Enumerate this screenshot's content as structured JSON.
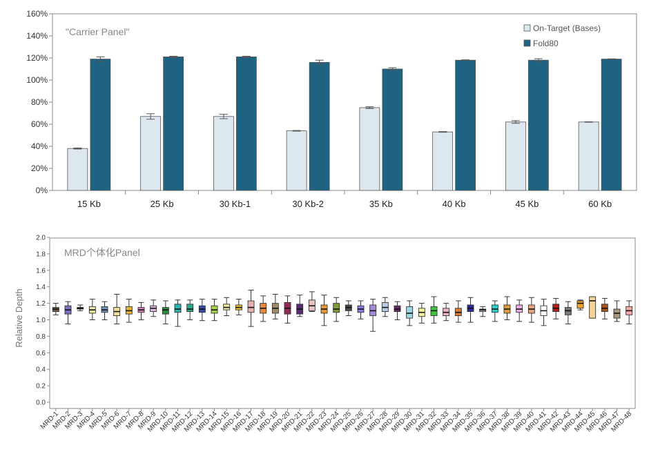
{
  "chart_data": [
    {
      "type": "bar",
      "title": "\"Carrier Panel\"",
      "categories": [
        "15 Kb",
        "25 Kb",
        "30 Kb-1",
        "30 Kb-2",
        "35 Kb",
        "40 Kb",
        "45 Kb",
        "60 Kb"
      ],
      "ylim": [
        0,
        160
      ],
      "yticks": [
        "0%",
        "20%",
        "40%",
        "60%",
        "80%",
        "100%",
        "120%",
        "140%",
        "160%"
      ],
      "legend_position": "top-right",
      "series": [
        {
          "name": "On-Target (Bases)",
          "color": "#dce8ee",
          "values": [
            38,
            67,
            67,
            54,
            75,
            53,
            62,
            62
          ],
          "errors": [
            0.5,
            2.5,
            2.0,
            0.3,
            0.8,
            0.3,
            1.2,
            0.2
          ]
        },
        {
          "name": "Fold80",
          "color": "#1e6482",
          "values": [
            119,
            121,
            121,
            116,
            110,
            118,
            118,
            119
          ],
          "errors": [
            2.0,
            0.6,
            0.6,
            2.0,
            1.2,
            0.3,
            1.3,
            0.2
          ]
        }
      ]
    },
    {
      "type": "box",
      "title": "MRD个体化Panel",
      "ylabel": "Relative Depth",
      "ylim": [
        0,
        2.0
      ],
      "yticks": [
        "0.0",
        "0.2",
        "0.4",
        "0.6",
        "0.8",
        "1.0",
        "1.2",
        "1.4",
        "1.6",
        "1.8",
        "2.0"
      ],
      "categories": [
        "MRD-1",
        "MRD-2",
        "MRD-3",
        "MRD-4",
        "MRD-5",
        "MRD-6",
        "MRD-7",
        "MRD-8",
        "MRD-9",
        "MRD-10",
        "MRD-11",
        "MRD-12",
        "MRD-13",
        "MRD-14",
        "MRD-15",
        "MRD-16",
        "MRD-17",
        "MRD-18",
        "MRD-19",
        "MRD-20",
        "MRD-21",
        "MRD-22",
        "MRD-23",
        "MRD-24",
        "MRD-25",
        "MRD-26",
        "MRD-27",
        "MRD-28",
        "MRD-29",
        "MRD-30",
        "MRD-31",
        "MRD-32",
        "MRD-33",
        "MRD-34",
        "MRD-35",
        "MRD-36",
        "MRD-37",
        "MRD-38",
        "MRD-39",
        "MRD-40",
        "MRD-41",
        "MRD-42",
        "MRD-43",
        "MRD-44",
        "MRD-45",
        "MRD-46",
        "MRD-47",
        "MRD-48"
      ],
      "boxes": [
        {
          "min": 1.06,
          "q1": 1.1,
          "median": 1.13,
          "q3": 1.15,
          "max": 1.2,
          "color": "#7a5a45"
        },
        {
          "min": 0.95,
          "q1": 1.07,
          "median": 1.12,
          "q3": 1.17,
          "max": 1.22,
          "color": "#7b6fc2"
        },
        {
          "min": 1.11,
          "q1": 1.13,
          "median": 1.14,
          "q3": 1.15,
          "max": 1.18,
          "color": "#8a6a8a"
        },
        {
          "min": 1.0,
          "q1": 1.08,
          "median": 1.12,
          "q3": 1.16,
          "max": 1.25,
          "color": "#ece6a8"
        },
        {
          "min": 1.0,
          "q1": 1.09,
          "median": 1.12,
          "q3": 1.16,
          "max": 1.22,
          "color": "#6f8fb5"
        },
        {
          "min": 0.95,
          "q1": 1.05,
          "median": 1.1,
          "q3": 1.15,
          "max": 1.31,
          "color": "#f2dc93"
        },
        {
          "min": 0.97,
          "q1": 1.07,
          "median": 1.11,
          "q3": 1.16,
          "max": 1.25,
          "color": "#e3b23c"
        },
        {
          "min": 1.0,
          "q1": 1.09,
          "median": 1.12,
          "q3": 1.15,
          "max": 1.21,
          "color": "#d37cb7"
        },
        {
          "min": 1.04,
          "q1": 1.1,
          "median": 1.14,
          "q3": 1.17,
          "max": 1.24,
          "color": "#d9b6de"
        },
        {
          "min": 0.95,
          "q1": 1.07,
          "median": 1.12,
          "q3": 1.15,
          "max": 1.23,
          "color": "#2e8b3e"
        },
        {
          "min": 0.92,
          "q1": 1.09,
          "median": 1.13,
          "q3": 1.19,
          "max": 1.24,
          "color": "#2ab5b2"
        },
        {
          "min": 1.0,
          "q1": 1.1,
          "median": 1.13,
          "q3": 1.19,
          "max": 1.24,
          "color": "#2fa88a"
        },
        {
          "min": 0.99,
          "q1": 1.09,
          "median": 1.13,
          "q3": 1.17,
          "max": 1.25,
          "color": "#3a4aa8"
        },
        {
          "min": 0.99,
          "q1": 1.08,
          "median": 1.12,
          "q3": 1.17,
          "max": 1.25,
          "color": "#a6d24a"
        },
        {
          "min": 1.05,
          "q1": 1.12,
          "median": 1.15,
          "q3": 1.19,
          "max": 1.27,
          "color": "#f0e9a0"
        },
        {
          "min": 1.06,
          "q1": 1.12,
          "median": 1.15,
          "q3": 1.18,
          "max": 1.25,
          "color": "#ecc830"
        },
        {
          "min": 0.92,
          "q1": 1.09,
          "median": 1.15,
          "q3": 1.23,
          "max": 1.36,
          "color": "#e5b3b3"
        },
        {
          "min": 0.98,
          "q1": 1.08,
          "median": 1.14,
          "q3": 1.2,
          "max": 1.29,
          "color": "#e98a3a"
        },
        {
          "min": 1.01,
          "q1": 1.08,
          "median": 1.14,
          "q3": 1.2,
          "max": 1.31,
          "color": "#a08a6a"
        },
        {
          "min": 0.96,
          "q1": 1.07,
          "median": 1.14,
          "q3": 1.21,
          "max": 1.29,
          "color": "#8e2a5a"
        },
        {
          "min": 1.04,
          "q1": 1.07,
          "median": 1.13,
          "q3": 1.19,
          "max": 1.3,
          "color": "#5a2a7a"
        },
        {
          "min": 1.1,
          "q1": 1.11,
          "median": 1.17,
          "q3": 1.24,
          "max": 1.34,
          "color": "#e7c2c2"
        },
        {
          "min": 0.93,
          "q1": 1.08,
          "median": 1.13,
          "q3": 1.18,
          "max": 1.3,
          "color": "#e39a3a"
        },
        {
          "min": 0.98,
          "q1": 1.09,
          "median": 1.13,
          "q3": 1.2,
          "max": 1.27,
          "color": "#7f9a3a"
        },
        {
          "min": 1.05,
          "q1": 1.11,
          "median": 1.15,
          "q3": 1.18,
          "max": 1.23,
          "color": "#4a4a4a"
        },
        {
          "min": 1.01,
          "q1": 1.09,
          "median": 1.13,
          "q3": 1.17,
          "max": 1.23,
          "color": "#8b78d8"
        },
        {
          "min": 0.86,
          "q1": 1.05,
          "median": 1.11,
          "q3": 1.18,
          "max": 1.25,
          "color": "#a48cd6"
        },
        {
          "min": 1.04,
          "q1": 1.1,
          "median": 1.15,
          "q3": 1.21,
          "max": 1.27,
          "color": "#b7cde6"
        },
        {
          "min": 1.0,
          "q1": 1.1,
          "median": 1.13,
          "q3": 1.17,
          "max": 1.22,
          "color": "#6a2a6a"
        },
        {
          "min": 0.93,
          "q1": 1.02,
          "median": 1.08,
          "q3": 1.16,
          "max": 1.23,
          "color": "#9fd6e6"
        },
        {
          "min": 0.96,
          "q1": 1.04,
          "median": 1.09,
          "q3": 1.14,
          "max": 1.2,
          "color": "#f4f09a"
        },
        {
          "min": 0.96,
          "q1": 1.05,
          "median": 1.11,
          "q3": 1.16,
          "max": 1.28,
          "color": "#3cc83c"
        },
        {
          "min": 0.99,
          "q1": 1.05,
          "median": 1.09,
          "q3": 1.14,
          "max": 1.2,
          "color": "#e7b2c2"
        },
        {
          "min": 0.97,
          "q1": 1.05,
          "median": 1.09,
          "q3": 1.14,
          "max": 1.23,
          "color": "#d87a36"
        },
        {
          "min": 0.97,
          "q1": 1.1,
          "median": 1.14,
          "q3": 1.18,
          "max": 1.27,
          "color": "#2a2aa0"
        },
        {
          "min": 1.04,
          "q1": 1.1,
          "median": 1.12,
          "q3": 1.13,
          "max": 1.16,
          "color": "#b6a9cc"
        },
        {
          "min": 0.98,
          "q1": 1.09,
          "median": 1.13,
          "q3": 1.18,
          "max": 1.23,
          "color": "#2ad1d1"
        },
        {
          "min": 1.0,
          "q1": 1.08,
          "median": 1.13,
          "q3": 1.18,
          "max": 1.28,
          "color": "#e09a3a"
        },
        {
          "min": 0.98,
          "q1": 1.09,
          "median": 1.13,
          "q3": 1.18,
          "max": 1.24,
          "color": "#ecb0e2"
        },
        {
          "min": 0.97,
          "q1": 1.08,
          "median": 1.13,
          "q3": 1.18,
          "max": 1.27,
          "color": "#e9a47a"
        },
        {
          "min": 0.93,
          "q1": 1.05,
          "median": 1.11,
          "q3": 1.17,
          "max": 1.25,
          "color": "#ffffff"
        },
        {
          "min": 1.01,
          "q1": 1.1,
          "median": 1.14,
          "q3": 1.19,
          "max": 1.26,
          "color": "#b01e1e"
        },
        {
          "min": 0.95,
          "q1": 1.06,
          "median": 1.11,
          "q3": 1.15,
          "max": 1.22,
          "color": "#787878"
        },
        {
          "min": 1.12,
          "q1": 1.14,
          "median": 1.2,
          "q3": 1.23,
          "max": 1.24,
          "color": "#f0a030"
        },
        {
          "min": 1.02,
          "q1": 1.02,
          "median": 1.23,
          "q3": 1.28,
          "max": 1.28,
          "color": "#f2d49a"
        },
        {
          "min": 1.01,
          "q1": 1.1,
          "median": 1.14,
          "q3": 1.19,
          "max": 1.26,
          "color": "#a8541e"
        },
        {
          "min": 0.98,
          "q1": 1.02,
          "median": 1.08,
          "q3": 1.13,
          "max": 1.23,
          "color": "#a6987a"
        },
        {
          "min": 0.95,
          "q1": 1.06,
          "median": 1.11,
          "q3": 1.16,
          "max": 1.23,
          "color": "#f7a8a8"
        }
      ]
    }
  ]
}
